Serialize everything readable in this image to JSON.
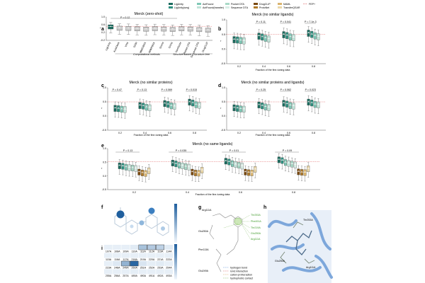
{
  "legend": {
    "items": [
      {
        "label": "LigUnity",
        "color": "#1b6b5e"
      },
      {
        "label": "LigUnity(seq)",
        "color": "#2f8f7f"
      },
      {
        "label": "ActFound",
        "color": "#7fc8b6"
      },
      {
        "label": "ActFound(transfer)",
        "color": "#bfe3d8"
      },
      {
        "label": "Pocket DTA",
        "color": "#a9d9c7"
      },
      {
        "label": "Sequence DTA",
        "color": "#d9eee6"
      },
      {
        "label": "DrugCLIP",
        "color": "#7a4a12"
      },
      {
        "label": "ProtoNet",
        "color": "#b07a2a"
      },
      {
        "label": "MAML",
        "color": "#d9b46f"
      },
      {
        "label": "TransferQSAR",
        "color": "#ead7a8"
      },
      {
        "label": "FEP+",
        "color": "#e06a6a"
      }
    ]
  },
  "panels": {
    "a": {
      "letter": "a",
      "title": "Merck (zero-shot)",
      "ptext": "P = 0.12",
      "groups": [
        "Computational methods",
        "Structure-based",
        "Structure-free"
      ]
    },
    "b": {
      "letter": "b",
      "title": "Merck (no similar ligands)",
      "xlabel": "Fraction of the fine-tuning data",
      "ptexts": [
        "P = 0.11",
        "P = 0.041",
        "P = 7.1e-3"
      ]
    },
    "c": {
      "letter": "c",
      "title": "Merck (no similar proteins)",
      "xlabel": "Fraction of the fine-tuning data",
      "ptexts": [
        "P = 0.47",
        "P = 0.13",
        "P = 0.069",
        "P = 0.015"
      ]
    },
    "d": {
      "letter": "d",
      "title": "Merck (no similar proteins and ligands)",
      "xlabel": "Fraction of the fine-tuning data",
      "ptexts": [
        "P = 0.25",
        "P = 0.062",
        "P = 0.023"
      ]
    },
    "e": {
      "letter": "e",
      "title": "Merck (no same ligands)",
      "xlabel": "Fraction of the fine-tuning data",
      "ptexts": [
        "P = 0.13",
        "P = 0.035",
        "P = 0.01",
        "P = 0.09"
      ]
    },
    "f": {
      "letter": "f"
    },
    "g": {
      "letter": "g",
      "residues": [
        "Arg111A",
        "Glu250A",
        "Phe113A",
        "Glu249A",
        "Thr253A",
        "Phe491A",
        "Thr219A",
        "Glu250A",
        "Arg111A"
      ],
      "legend": [
        "hydrogen bond",
        "ionic interaction",
        "cation-pi interaction",
        "hydrophobic contact"
      ]
    },
    "h": {
      "letter": "h",
      "residues": [
        "Thr253A",
        "Glu250A",
        "Arg111A"
      ]
    },
    "i": {
      "letter": "i",
      "rows": [
        [
          "107A",
          "108A",
          "109A",
          "110A",
          "111A",
          "112A",
          "113A",
          "114A"
        ],
        [
          "115A",
          "116A",
          "117A",
          "218A",
          "219A",
          "220A",
          "221A",
          "222A"
        ],
        [
          "223A",
          "248A",
          "249A",
          "250A",
          "251A",
          "252A",
          "253A",
          "254A"
        ],
        [
          "255A",
          "256A",
          "257A",
          "489A",
          "490A",
          "491A",
          "492A",
          "493A"
        ]
      ]
    }
  },
  "chart_data": [
    {
      "type": "box",
      "panel": "a",
      "title": "Merck (zero-shot)",
      "ylabel": "r",
      "categories": [
        "LigUnity",
        "AutoDock",
        "Vina",
        "Glide",
        "MM/GBSA",
        "MM/PBSA",
        "Smina",
        "Gnina",
        "GenScore",
        "Pocket DTA",
        "Sequence DTA",
        "DrugCLIP"
      ],
      "medians": [
        0.5,
        0.43,
        0.42,
        0.4,
        0.38,
        0.41,
        0.39,
        0.37,
        0.4,
        0.39,
        0.36,
        0.33
      ],
      "ylim": [
        -0.2,
        1.0
      ]
    },
    {
      "type": "box",
      "panel": "b",
      "title": "Merck (no similar ligands)",
      "xlabel": "Fraction of the fine-tuning data",
      "ylabel": "r",
      "x": [
        "0.2",
        "0.4",
        "0.6",
        "0.8"
      ],
      "series": [
        {
          "name": "LigUnity",
          "medians": [
            0.33,
            0.45,
            0.5,
            0.55
          ]
        },
        {
          "name": "LigUnity(seq)",
          "medians": [
            0.32,
            0.42,
            0.47,
            0.51
          ]
        },
        {
          "name": "ActFound",
          "medians": [
            0.3,
            0.38,
            0.42,
            0.46
          ]
        },
        {
          "name": "ActFound(transfer)",
          "medians": [
            0.29,
            0.35,
            0.4,
            0.43
          ]
        }
      ],
      "ylim": [
        -0.5,
        1.0
      ]
    },
    {
      "type": "box",
      "panel": "c",
      "title": "Merck (no similar proteins)",
      "xlabel": "Fraction of the fine-tuning data",
      "ylabel": "r",
      "x": [
        "0.2",
        "0.4",
        "0.6",
        "0.8"
      ],
      "series": [
        {
          "name": "LigUnity",
          "medians": [
            0.28,
            0.38,
            0.45,
            0.5
          ]
        },
        {
          "name": "LigUnity(seq)",
          "medians": [
            0.27,
            0.36,
            0.42,
            0.47
          ]
        },
        {
          "name": "ActFound",
          "medians": [
            0.25,
            0.32,
            0.37,
            0.41
          ]
        },
        {
          "name": "ActFound(transfer)",
          "medians": [
            0.24,
            0.3,
            0.35,
            0.39
          ]
        }
      ],
      "ylim": [
        -0.5,
        1.0
      ]
    },
    {
      "type": "box",
      "panel": "d",
      "title": "Merck (no similar proteins and ligands)",
      "xlabel": "Fraction of the fine-tuning data",
      "ylabel": "r",
      "x": [
        "0.2",
        "0.4",
        "0.6",
        "0.8"
      ],
      "series": [
        {
          "name": "LigUnity",
          "medians": [
            0.3,
            0.4,
            0.46,
            0.5
          ]
        },
        {
          "name": "LigUnity(seq)",
          "medians": [
            0.28,
            0.37,
            0.43,
            0.47
          ]
        },
        {
          "name": "ActFound",
          "medians": [
            0.26,
            0.33,
            0.38,
            0.42
          ]
        },
        {
          "name": "ActFound(transfer)",
          "medians": [
            0.25,
            0.31,
            0.36,
            0.4
          ]
        }
      ],
      "ylim": [
        -0.5,
        1.0
      ]
    },
    {
      "type": "box",
      "panel": "e",
      "title": "Merck (no same ligands)",
      "xlabel": "Fraction of the fine-tuning data",
      "ylabel": "r",
      "x": [
        "0.2",
        "0.4",
        "0.6",
        "0.8"
      ],
      "series": [
        {
          "name": "LigUnity",
          "medians": [
            0.38,
            0.48,
            0.55,
            0.6
          ]
        },
        {
          "name": "LigUnity(seq)",
          "medians": [
            0.36,
            0.45,
            0.52,
            0.57
          ]
        },
        {
          "name": "ActFound",
          "medians": [
            0.33,
            0.4,
            0.46,
            0.5
          ]
        },
        {
          "name": "ActFound(transfer)",
          "medians": [
            0.31,
            0.38,
            0.43,
            0.47
          ]
        },
        {
          "name": "Pocket DTA",
          "medians": [
            0.3,
            0.35,
            0.4,
            0.44
          ]
        },
        {
          "name": "Sequence DTA",
          "medians": [
            0.28,
            0.33,
            0.37,
            0.41
          ]
        },
        {
          "name": "DrugCLIP",
          "medians": [
            0.15,
            0.15,
            0.15,
            0.16
          ]
        },
        {
          "name": "ProtoNet",
          "medians": [
            0.12,
            0.12,
            0.13,
            0.14
          ]
        },
        {
          "name": "MAML",
          "medians": [
            0.1,
            0.11,
            0.12,
            0.13
          ]
        },
        {
          "name": "TransferQSAR",
          "medians": [
            0.2,
            0.22,
            0.25,
            0.27
          ]
        }
      ],
      "fep_line": 0.52,
      "ylim": [
        -0.5,
        1.0
      ]
    },
    {
      "type": "heatmap",
      "panel": "i",
      "values": [
        [
          0.05,
          0.05,
          0.05,
          0.08,
          0.35,
          0.3,
          0.25,
          0.08
        ],
        [
          0.05,
          0.05,
          0.05,
          0.05,
          0.05,
          0.05,
          0.05,
          0.05
        ],
        [
          0.05,
          0.1,
          0.45,
          0.95,
          0.12,
          0.06,
          0.08,
          0.05
        ],
        [
          0.05,
          0.05,
          0.05,
          0.06,
          0.05,
          0.05,
          0.05,
          0.05
        ]
      ]
    }
  ]
}
